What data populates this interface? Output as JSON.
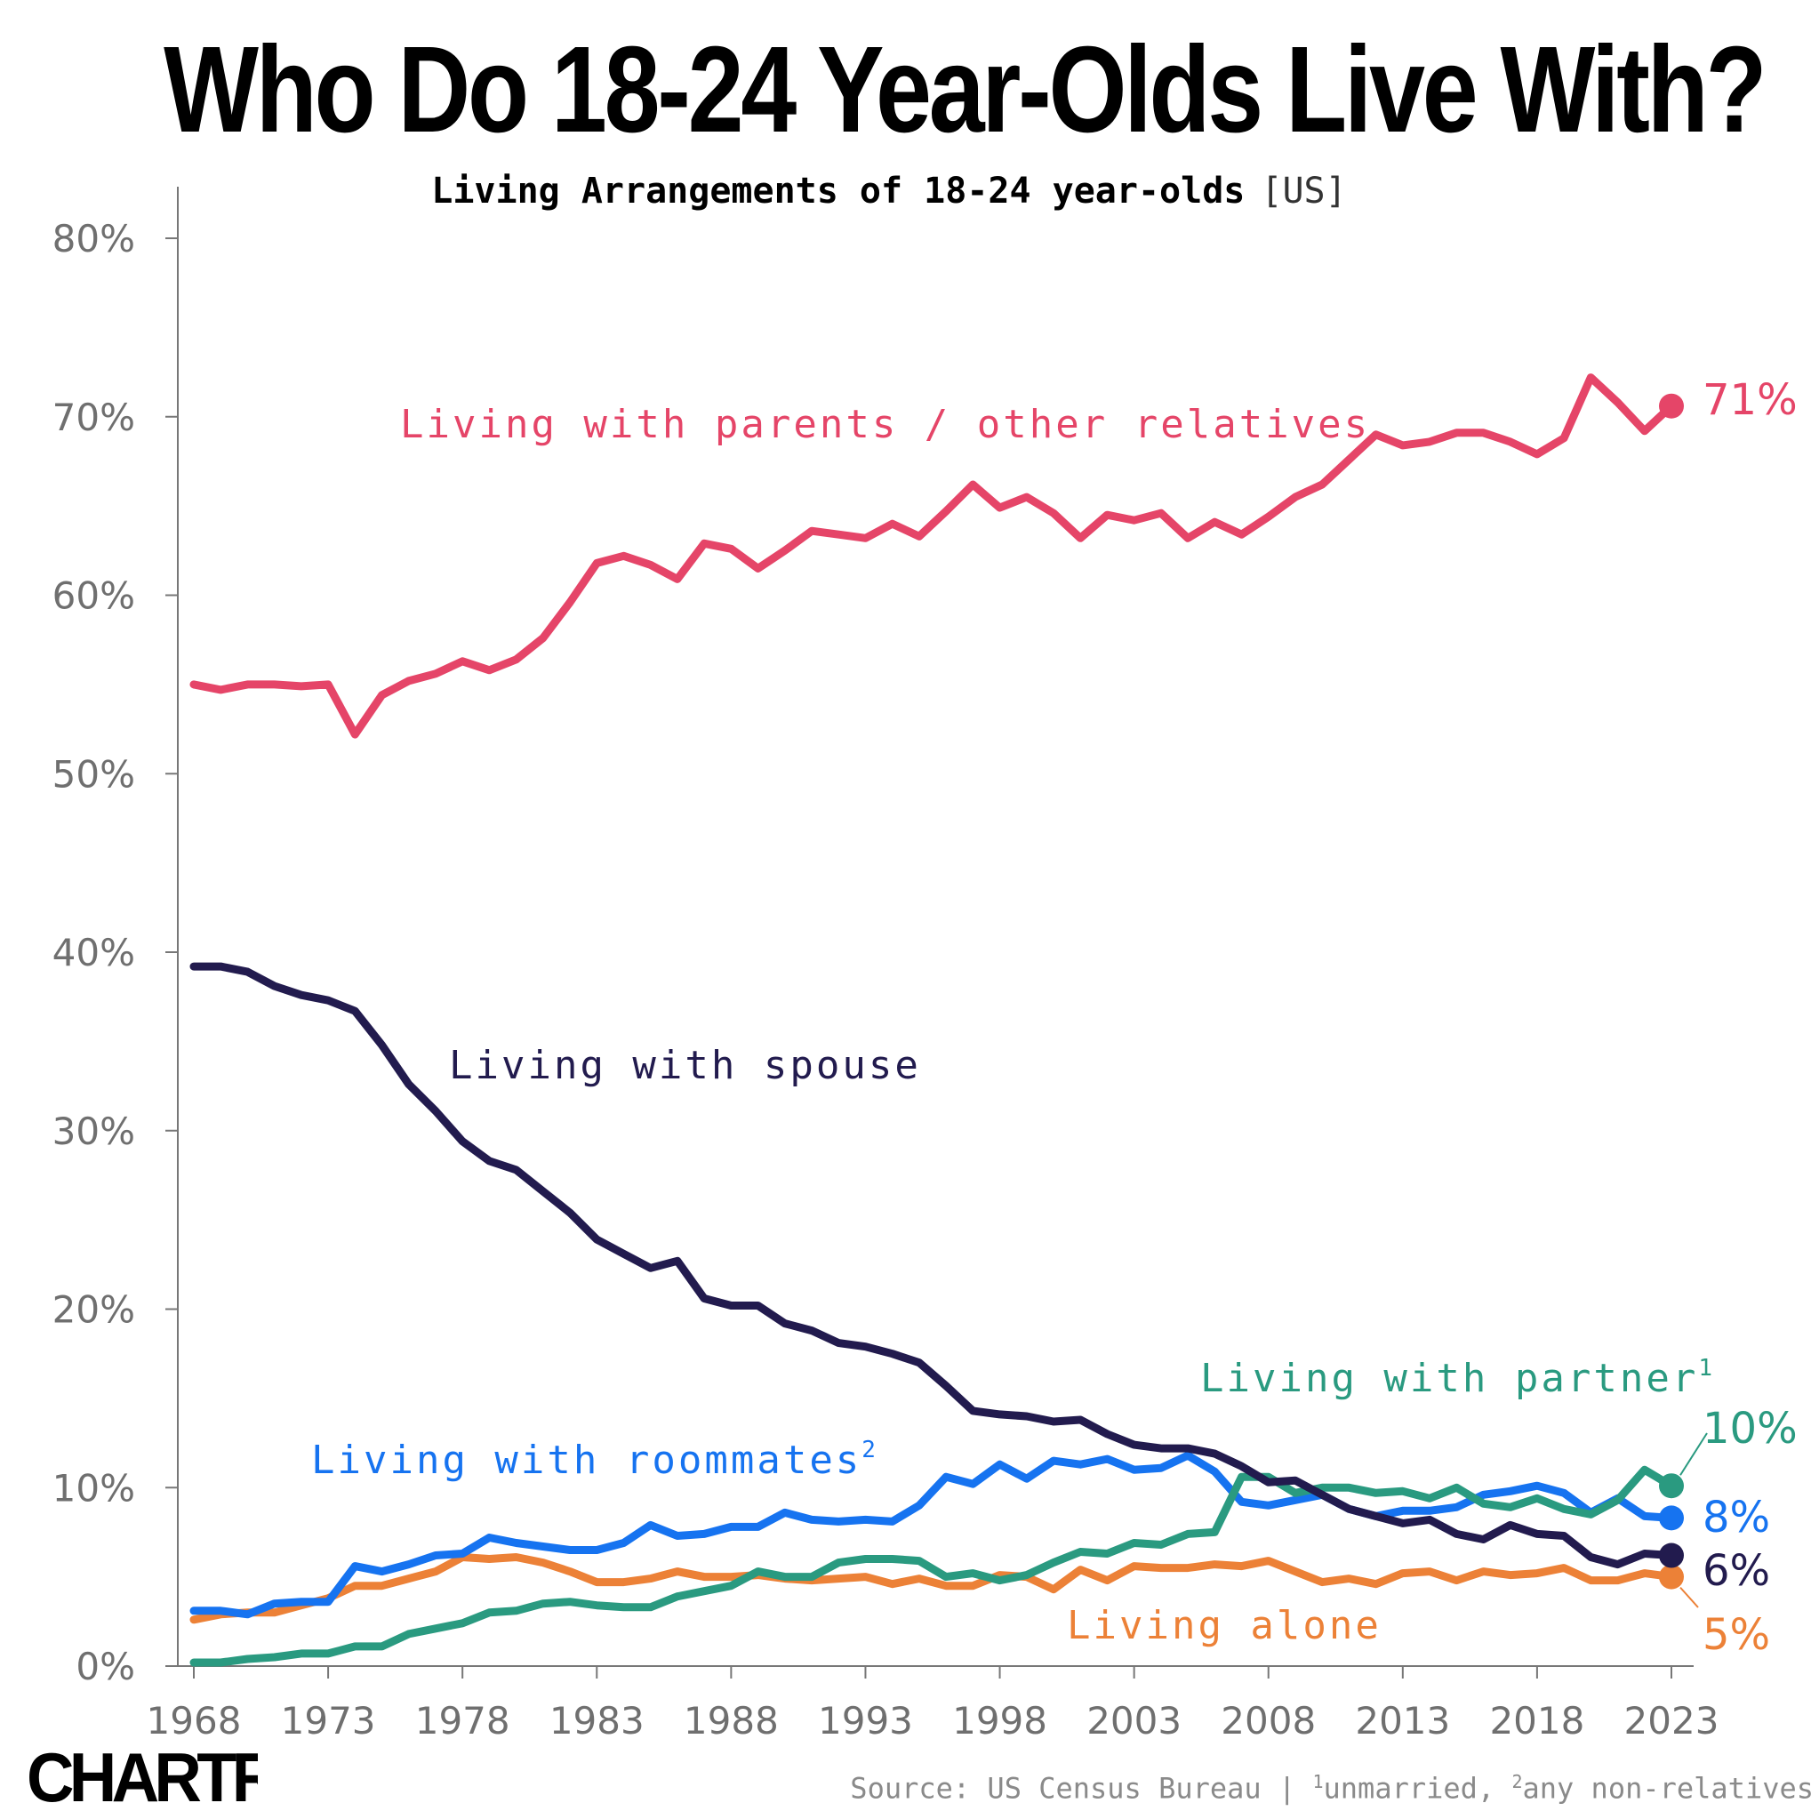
{
  "title": "Who Do 18-24 Year-Olds Live With?",
  "subtitle": {
    "main": "Living Arrangements of 18-24 year-olds",
    "region": "[US]"
  },
  "source": {
    "text": "Source: US Census Bureau | ",
    "note1_mark": "1",
    "note1": "unmarried, ",
    "note2_mark": "2",
    "note2": "any non-relatives"
  },
  "brand": "CHARTR",
  "colors": {
    "parents": "#e54568",
    "spouse": "#221b4e",
    "partner": "#2a9a80",
    "roommates": "#1673f0",
    "alone": "#ec8137",
    "axis": "#777777",
    "tick_text": "#6f6f6f"
  },
  "chart_data": {
    "type": "line",
    "xlim": [
      1968,
      2023
    ],
    "ylim": [
      0,
      80
    ],
    "y_ticks": [
      0,
      10,
      20,
      30,
      40,
      50,
      60,
      70,
      80
    ],
    "y_tick_labels": [
      "0%",
      "10%",
      "20%",
      "30%",
      "40%",
      "50%",
      "60%",
      "70%",
      "80%"
    ],
    "x_ticks": [
      1968,
      1973,
      1978,
      1983,
      1988,
      1993,
      1998,
      2003,
      2008,
      2013,
      2018,
      2023
    ],
    "x_tick_labels": [
      "1968",
      "1973",
      "1978",
      "1983",
      "1988",
      "1993",
      "1998",
      "2003",
      "2008",
      "2013",
      "2018",
      "2023"
    ],
    "grid": false,
    "x": [
      1968,
      1969,
      1970,
      1971,
      1972,
      1973,
      1974,
      1975,
      1976,
      1977,
      1978,
      1979,
      1980,
      1981,
      1982,
      1983,
      1984,
      1985,
      1986,
      1987,
      1988,
      1989,
      1990,
      1991,
      1992,
      1993,
      1994,
      1995,
      1996,
      1997,
      1998,
      1999,
      2000,
      2001,
      2002,
      2003,
      2004,
      2005,
      2006,
      2007,
      2008,
      2009,
      2010,
      2011,
      2012,
      2013,
      2014,
      2015,
      2016,
      2017,
      2018,
      2019,
      2020,
      2021,
      2022,
      2023
    ],
    "series": [
      {
        "key": "parents",
        "name": "Living with parents / other relatives",
        "end_label": "71%",
        "values": [
          55.0,
          54.7,
          55.0,
          55.0,
          54.9,
          55.0,
          52.2,
          54.4,
          55.2,
          55.6,
          56.3,
          55.8,
          56.4,
          57.6,
          59.6,
          61.8,
          62.2,
          61.7,
          60.9,
          62.9,
          62.6,
          61.5,
          62.5,
          63.6,
          63.4,
          63.2,
          64.0,
          63.3,
          64.7,
          66.2,
          64.9,
          65.5,
          64.6,
          63.2,
          64.5,
          64.2,
          64.6,
          63.2,
          64.1,
          63.4,
          64.4,
          65.5,
          66.2,
          67.6,
          69.0,
          68.4,
          68.6,
          69.1,
          69.1,
          68.6,
          67.9,
          68.8,
          72.2,
          70.8,
          69.2,
          70.6
        ]
      },
      {
        "key": "spouse",
        "name": "Living with spouse",
        "end_label": "6%",
        "values": [
          39.2,
          39.2,
          38.9,
          38.1,
          37.6,
          37.3,
          36.7,
          34.8,
          32.6,
          31.1,
          29.4,
          28.3,
          27.8,
          26.6,
          25.4,
          23.9,
          23.1,
          22.3,
          22.7,
          20.6,
          20.2,
          20.2,
          19.2,
          18.8,
          18.1,
          17.9,
          17.5,
          17.0,
          15.7,
          14.3,
          14.1,
          14.0,
          13.7,
          13.8,
          13.0,
          12.4,
          12.2,
          12.2,
          11.9,
          11.2,
          10.3,
          10.4,
          9.6,
          8.8,
          8.4,
          8.0,
          8.2,
          7.4,
          7.1,
          7.9,
          7.4,
          7.3,
          6.1,
          5.7,
          6.3,
          6.2
        ]
      },
      {
        "key": "partner",
        "name": "Living with partner",
        "name_sup": "1",
        "end_label": "10%",
        "values": [
          0.2,
          0.2,
          0.4,
          0.5,
          0.7,
          0.7,
          1.1,
          1.1,
          1.8,
          2.1,
          2.4,
          3.0,
          3.1,
          3.5,
          3.6,
          3.4,
          3.3,
          3.3,
          3.9,
          4.2,
          4.5,
          5.3,
          5.0,
          5.0,
          5.8,
          6.0,
          6.0,
          5.9,
          5.0,
          5.2,
          4.8,
          5.1,
          5.8,
          6.4,
          6.3,
          6.9,
          6.8,
          7.4,
          7.5,
          10.6,
          10.6,
          9.7,
          10.0,
          10.0,
          9.7,
          9.8,
          9.4,
          10.0,
          9.1,
          8.9,
          9.4,
          8.8,
          8.5,
          9.3,
          11.0,
          10.1
        ]
      },
      {
        "key": "roommates",
        "name": "Living with roommates",
        "name_sup": "2",
        "end_label": "8%",
        "values": [
          3.1,
          3.1,
          2.9,
          3.5,
          3.6,
          3.6,
          5.6,
          5.3,
          5.7,
          6.2,
          6.3,
          7.2,
          6.9,
          6.7,
          6.5,
          6.5,
          6.9,
          7.9,
          7.3,
          7.4,
          7.8,
          7.8,
          8.6,
          8.2,
          8.1,
          8.2,
          8.1,
          9.0,
          10.6,
          10.2,
          11.3,
          10.5,
          11.5,
          11.3,
          11.6,
          11.0,
          11.1,
          11.8,
          10.9,
          9.2,
          9.0,
          9.3,
          9.6,
          8.8,
          8.4,
          8.7,
          8.7,
          8.9,
          9.6,
          9.8,
          10.1,
          9.7,
          8.6,
          9.4,
          8.4,
          8.3
        ]
      },
      {
        "key": "alone",
        "name": "Living alone",
        "end_label": "5%",
        "values": [
          2.6,
          2.9,
          3.0,
          3.0,
          3.4,
          3.8,
          4.5,
          4.5,
          4.9,
          5.3,
          6.1,
          6.0,
          6.1,
          5.8,
          5.3,
          4.7,
          4.7,
          4.9,
          5.3,
          5.0,
          5.0,
          5.1,
          4.9,
          4.8,
          4.9,
          5.0,
          4.6,
          4.9,
          4.5,
          4.5,
          5.1,
          5.0,
          4.3,
          5.4,
          4.8,
          5.6,
          5.5,
          5.5,
          5.7,
          5.6,
          5.9,
          5.3,
          4.7,
          4.9,
          4.6,
          5.2,
          5.3,
          4.8,
          5.3,
          5.1,
          5.2,
          5.5,
          4.8,
          4.8,
          5.2,
          5.0
        ]
      }
    ]
  }
}
